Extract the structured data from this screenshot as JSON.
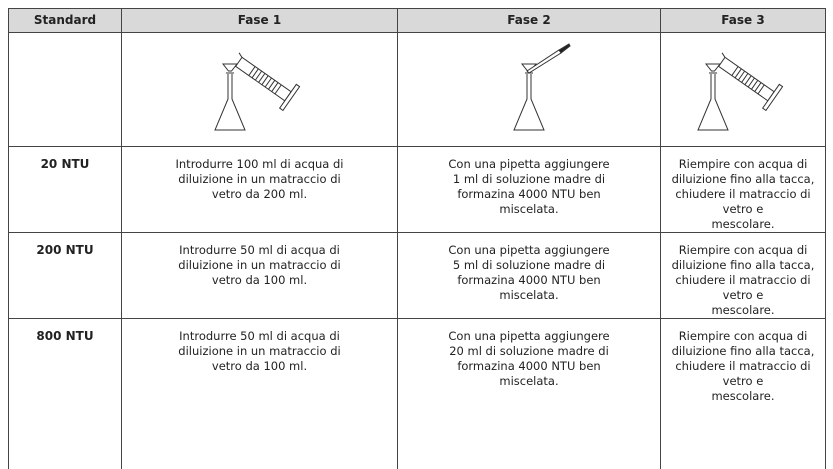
{
  "table": {
    "header": [
      "Standard",
      "Fase 1",
      "Fase 2",
      "Fase 3"
    ],
    "rows": [
      {
        "standard": "20 NTU",
        "steps": [
          [
            "Introdurre 100 ml di acqua di",
            "diluizione in un matraccio di",
            "vetro da 200 ml."
          ],
          [
            "Con una pipetta aggiungere",
            "1 ml di soluzione madre di",
            "formazina 4000 NTU ben",
            "miscelata."
          ],
          [
            "Riempire con acqua di",
            "diluizione fino alla tacca,",
            "chiudere il matraccio di vetro e",
            "mescolare."
          ]
        ]
      },
      {
        "standard": "200 NTU",
        "steps": [
          [
            "Introdurre 50 ml di acqua di",
            "diluizione in un matraccio di",
            "vetro da 100 ml."
          ],
          [
            "Con una pipetta aggiungere",
            "5 ml di soluzione madre di",
            "formazina 4000 NTU ben",
            "miscelata."
          ],
          [
            "Riempire con acqua di",
            "diluizione fino alla tacca,",
            "chiudere il matraccio di vetro e",
            "mescolare."
          ]
        ]
      },
      {
        "standard": "800 NTU",
        "steps": [
          [
            "Introdurre 50 ml di acqua di",
            "diluizione in un matraccio di",
            "vetro da 100 ml."
          ],
          [
            "Con una pipetta aggiungere",
            "20 ml di soluzione madre di",
            "formazina 4000 NTU ben",
            "miscelata."
          ],
          [
            "Riempire con acqua di",
            "diluizione fino alla tacca,",
            "chiudere il matraccio di vetro e",
            "mescolare."
          ]
        ]
      }
    ]
  }
}
